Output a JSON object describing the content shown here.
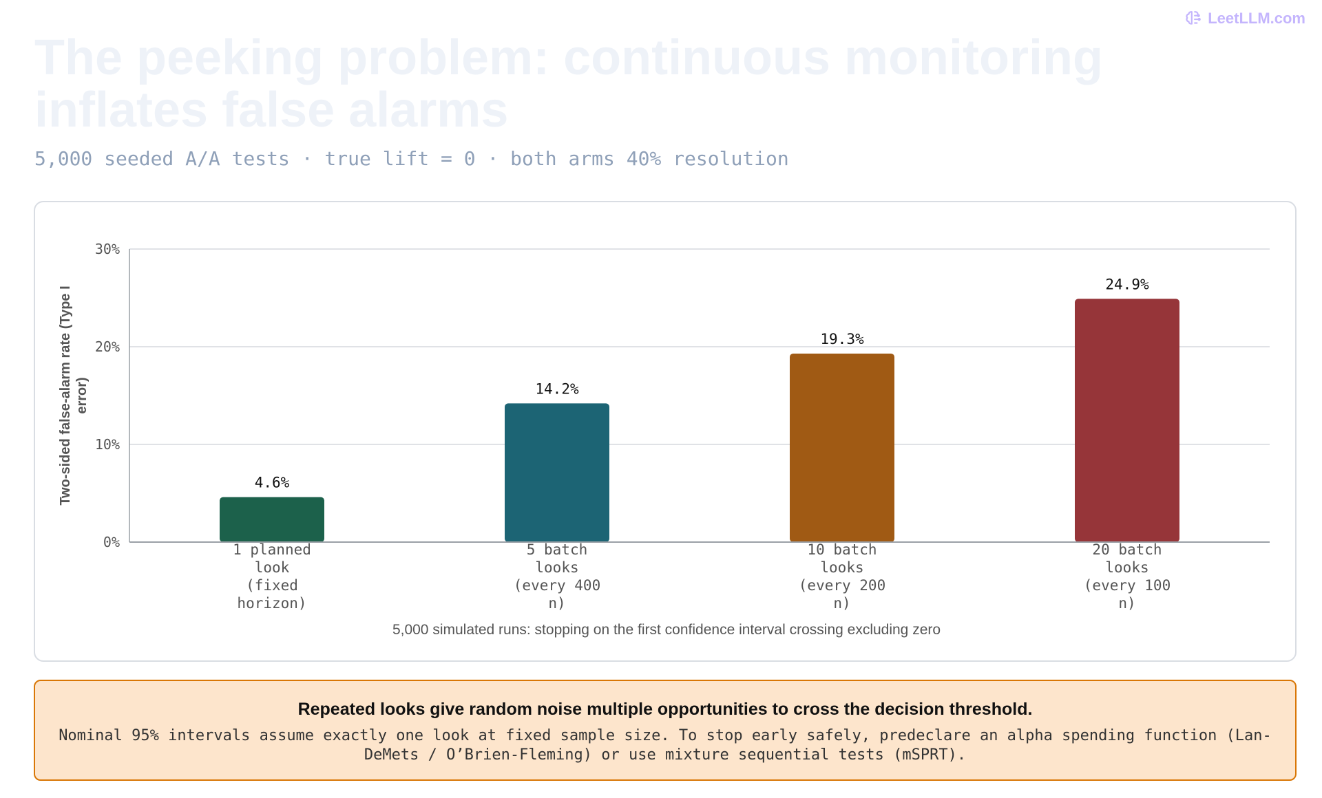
{
  "brand": {
    "label": "LeetLLM.com",
    "icon": "brain-icon",
    "color": "#c4b5fd"
  },
  "title": "The peeking problem: continuous monitoring inflates false alarms",
  "subtitle": "5,000 seeded A/A tests · true lift = 0 · both arms 40% resolution",
  "chart_data": {
    "type": "bar",
    "categories": [
      "1 planned look (fixed horizon)",
      "5 batch looks (every 400 n)",
      "10 batch looks (every 200 n)",
      "20 batch looks (every 100 n)"
    ],
    "values": [
      4.6,
      14.2,
      19.3,
      24.9
    ],
    "data_labels": [
      "4.6%",
      "14.2%",
      "19.3%",
      "24.9%"
    ],
    "colors": [
      "#1c614b",
      "#1c6474",
      "#a05a14",
      "#963539"
    ],
    "ylabel": "Two-sided false-alarm rate (Type I error)",
    "xlabel": "5,000 simulated runs: stopping on the first confidence interval crossing excluding zero",
    "ylim": [
      0,
      30
    ],
    "yticks": [
      0,
      10,
      20,
      30
    ],
    "ytick_labels": [
      "0%",
      "10%",
      "20%",
      "30%"
    ],
    "grid": true
  },
  "callout": {
    "heading": "Repeated looks give random noise multiple opportunities to cross the decision threshold.",
    "body": "Nominal 95% intervals assume exactly one look at fixed sample size. To stop early safely, predeclare an alpha spending function (Lan-DeMets / O’Brien-Fleming) or use mixture sequential tests (mSPRT)."
  }
}
